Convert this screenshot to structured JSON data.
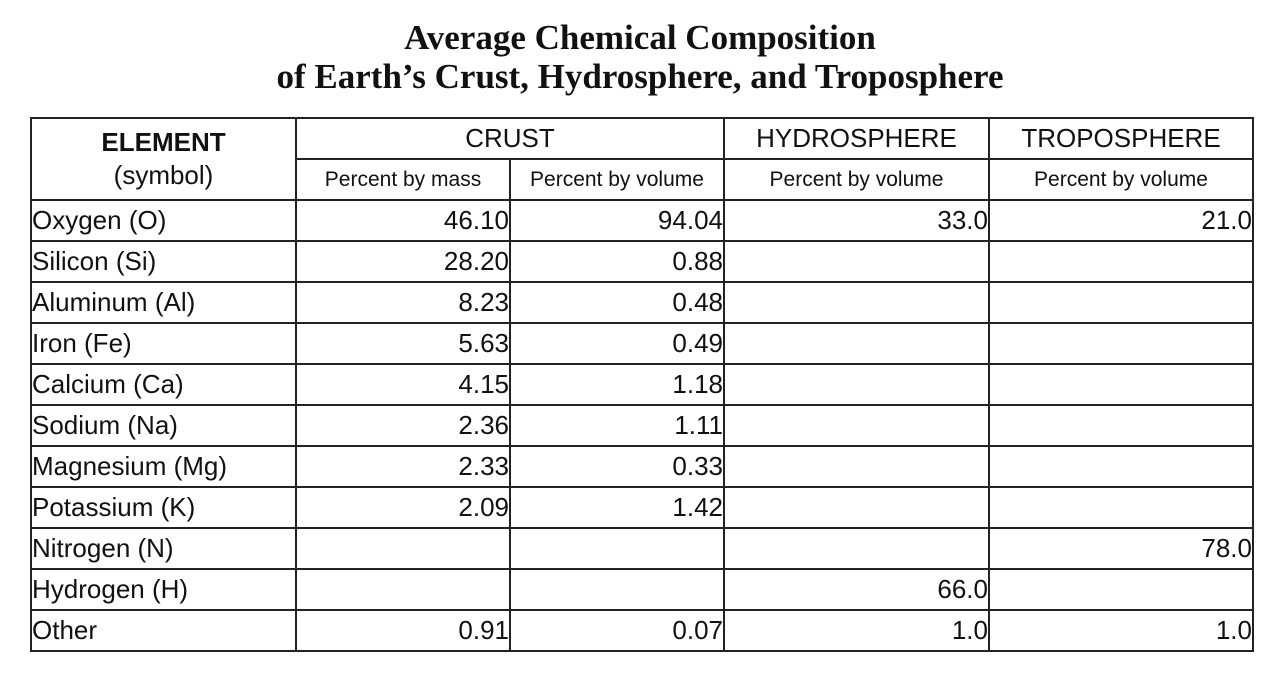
{
  "title": {
    "line1": "Average Chemical Composition",
    "line2": "of Earth’s Crust, Hydrosphere, and Troposphere"
  },
  "header": {
    "element": "ELEMENT",
    "symbol": "(symbol)",
    "crust": "CRUST",
    "hydrosphere": "HYDROSPHERE",
    "troposphere": "TROPOSPHERE",
    "crust_mass": "Percent by mass",
    "crust_volume": "Percent by volume",
    "hydrosphere_volume": "Percent by volume",
    "troposphere_volume": "Percent by volume"
  },
  "rows": [
    {
      "element": "Oxygen (O)",
      "crust_mass": "46.10",
      "crust_volume": "94.04",
      "hydrosphere": "33.0",
      "troposphere": "21.0"
    },
    {
      "element": "Silicon (Si)",
      "crust_mass": "28.20",
      "crust_volume": "0.88",
      "hydrosphere": "",
      "troposphere": ""
    },
    {
      "element": "Aluminum (Al)",
      "crust_mass": "8.23",
      "crust_volume": "0.48",
      "hydrosphere": "",
      "troposphere": ""
    },
    {
      "element": "Iron (Fe)",
      "crust_mass": "5.63",
      "crust_volume": "0.49",
      "hydrosphere": "",
      "troposphere": ""
    },
    {
      "element": "Calcium (Ca)",
      "crust_mass": "4.15",
      "crust_volume": "1.18",
      "hydrosphere": "",
      "troposphere": ""
    },
    {
      "element": "Sodium (Na)",
      "crust_mass": "2.36",
      "crust_volume": "1.11",
      "hydrosphere": "",
      "troposphere": ""
    },
    {
      "element": "Magnesium (Mg)",
      "crust_mass": "2.33",
      "crust_volume": "0.33",
      "hydrosphere": "",
      "troposphere": ""
    },
    {
      "element": "Potassium (K)",
      "crust_mass": "2.09",
      "crust_volume": "1.42",
      "hydrosphere": "",
      "troposphere": ""
    },
    {
      "element": "Nitrogen (N)",
      "crust_mass": "",
      "crust_volume": "",
      "hydrosphere": "",
      "troposphere": "78.0"
    },
    {
      "element": "Hydrogen (H)",
      "crust_mass": "",
      "crust_volume": "",
      "hydrosphere": "66.0",
      "troposphere": ""
    },
    {
      "element": "Other",
      "crust_mass": "0.91",
      "crust_volume": "0.07",
      "hydrosphere": "1.0",
      "troposphere": "1.0"
    }
  ]
}
